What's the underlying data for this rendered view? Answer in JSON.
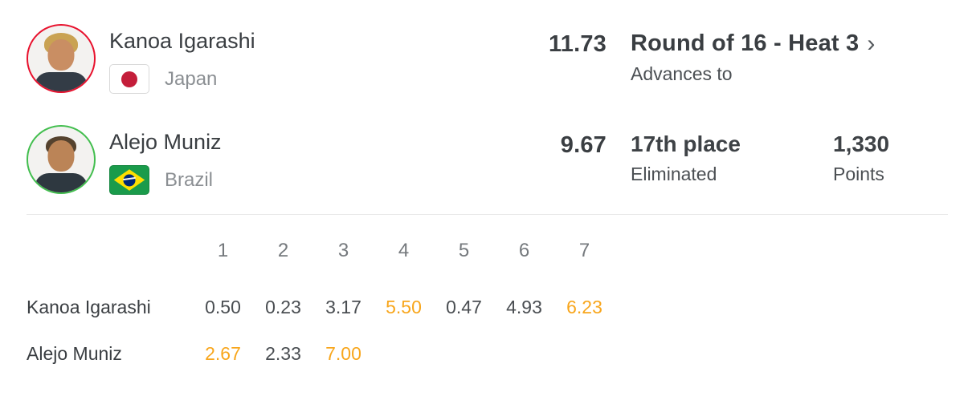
{
  "colors": {
    "accent_orange": "#F8A61C",
    "jersey_red": "#E8112D",
    "jersey_green": "#42BE4E",
    "text_dark": "#3A3E42",
    "text_gray": "#8B8F93"
  },
  "icons": {
    "chevron_right": "›"
  },
  "athletes": [
    {
      "name": "Kanoa Igarashi",
      "country": "Japan",
      "flag": "japan-flag",
      "jersey_color": "#E8112D",
      "total": "11.73",
      "result": {
        "title": "Round of 16 - Heat 3",
        "subtitle": "Advances to"
      }
    },
    {
      "name": "Alejo Muniz",
      "country": "Brazil",
      "flag": "brazil-flag",
      "jersey_color": "#42BE4E",
      "total": "9.67",
      "result": {
        "title": "17th place",
        "subtitle": "Eliminated"
      },
      "points": {
        "value": "1,330",
        "label": "Points"
      }
    }
  ],
  "wave_table": {
    "columns": [
      "1",
      "2",
      "3",
      "4",
      "5",
      "6",
      "7"
    ],
    "rows": [
      {
        "label": "Kanoa Igarashi",
        "scores": [
          {
            "value": "0.50",
            "state": "normal"
          },
          {
            "value": "0.23",
            "state": "normal"
          },
          {
            "value": "3.17",
            "state": "normal"
          },
          {
            "value": "5.50",
            "state": "counted"
          },
          {
            "value": "0.47",
            "state": "normal"
          },
          {
            "value": "4.93",
            "state": "normal"
          },
          {
            "value": "6.23",
            "state": "counted"
          }
        ]
      },
      {
        "label": "Alejo Muniz",
        "scores": [
          {
            "value": "2.67",
            "state": "counted"
          },
          {
            "value": "2.33",
            "state": "normal"
          },
          {
            "value": "7.00",
            "state": "counted"
          }
        ]
      }
    ]
  }
}
